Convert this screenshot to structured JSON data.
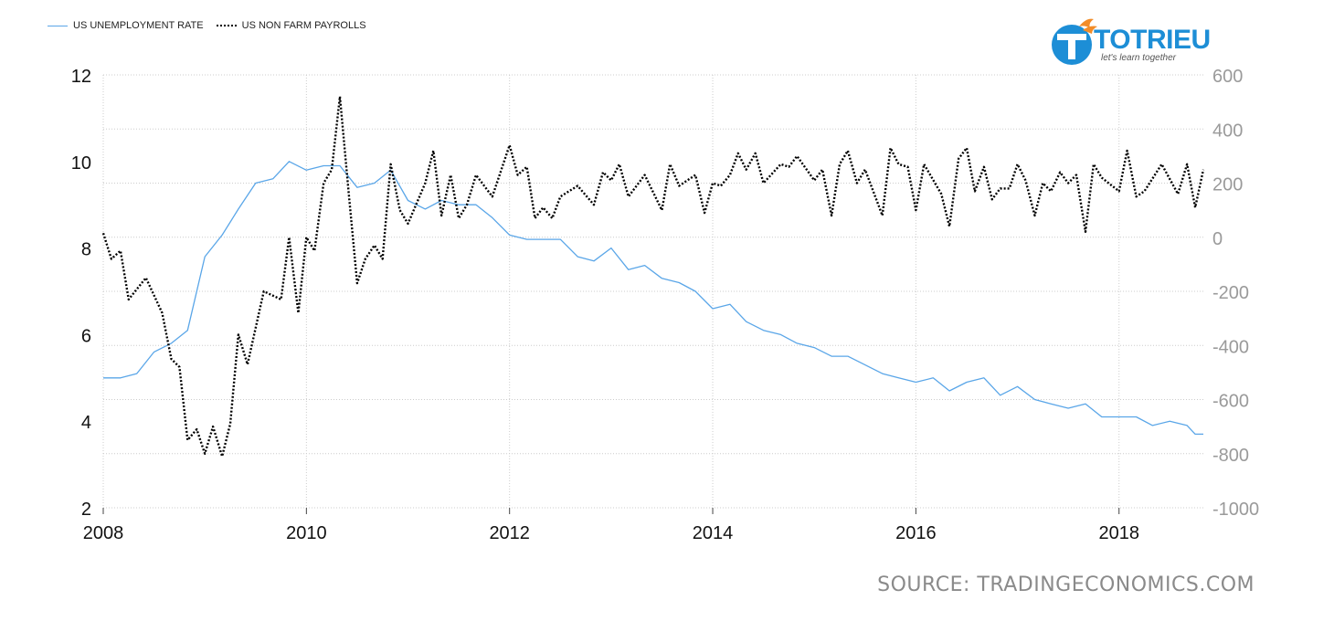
{
  "legend": {
    "series1": "US UNEMPLOYMENT RATE",
    "series2": "US NON FARM PAYROLLS"
  },
  "logo": {
    "word": "TOTRIEU",
    "tagline": "let's learn together"
  },
  "source": "SOURCE: TRADINGECONOMICS.COM",
  "colors": {
    "unemployment": "#5aa6e8",
    "payrolls": "#000000",
    "grid": "#cccccc",
    "right_axis": "#9a9a9a"
  },
  "chart_data": {
    "type": "line",
    "x_ticks": [
      "2008",
      "2010",
      "2012",
      "2014",
      "2016",
      "2018"
    ],
    "y_left": {
      "ticks": [
        2,
        4,
        6,
        8,
        10,
        12
      ],
      "range": [
        2,
        12
      ]
    },
    "y_right": {
      "ticks": [
        600,
        400,
        200,
        0,
        -200,
        -400,
        -600,
        -800,
        -1000
      ],
      "range": [
        -1000,
        600
      ]
    },
    "x_range": [
      2008.0,
      2018.83
    ],
    "series": [
      {
        "name": "US UNEMPLOYMENT RATE",
        "axis": "left",
        "style": "solid",
        "points": [
          [
            2008.0,
            5.0
          ],
          [
            2008.17,
            5.0
          ],
          [
            2008.33,
            5.1
          ],
          [
            2008.5,
            5.6
          ],
          [
            2008.67,
            5.8
          ],
          [
            2008.83,
            6.1
          ],
          [
            2009.0,
            7.8
          ],
          [
            2009.17,
            8.3
          ],
          [
            2009.33,
            8.9
          ],
          [
            2009.5,
            9.5
          ],
          [
            2009.67,
            9.6
          ],
          [
            2009.83,
            10.0
          ],
          [
            2010.0,
            9.8
          ],
          [
            2010.17,
            9.9
          ],
          [
            2010.33,
            9.9
          ],
          [
            2010.5,
            9.4
          ],
          [
            2010.67,
            9.5
          ],
          [
            2010.83,
            9.8
          ],
          [
            2011.0,
            9.1
          ],
          [
            2011.17,
            8.9
          ],
          [
            2011.33,
            9.1
          ],
          [
            2011.5,
            9.0
          ],
          [
            2011.67,
            9.0
          ],
          [
            2011.83,
            8.7
          ],
          [
            2012.0,
            8.3
          ],
          [
            2012.17,
            8.2
          ],
          [
            2012.33,
            8.2
          ],
          [
            2012.5,
            8.2
          ],
          [
            2012.67,
            7.8
          ],
          [
            2012.83,
            7.7
          ],
          [
            2013.0,
            8.0
          ],
          [
            2013.17,
            7.5
          ],
          [
            2013.33,
            7.6
          ],
          [
            2013.5,
            7.3
          ],
          [
            2013.67,
            7.2
          ],
          [
            2013.83,
            7.0
          ],
          [
            2014.0,
            6.6
          ],
          [
            2014.17,
            6.7
          ],
          [
            2014.33,
            6.3
          ],
          [
            2014.5,
            6.1
          ],
          [
            2014.67,
            6.0
          ],
          [
            2014.83,
            5.8
          ],
          [
            2015.0,
            5.7
          ],
          [
            2015.17,
            5.5
          ],
          [
            2015.33,
            5.5
          ],
          [
            2015.5,
            5.3
          ],
          [
            2015.67,
            5.1
          ],
          [
            2015.83,
            5.0
          ],
          [
            2016.0,
            4.9
          ],
          [
            2016.17,
            5.0
          ],
          [
            2016.33,
            4.7
          ],
          [
            2016.5,
            4.9
          ],
          [
            2016.67,
            5.0
          ],
          [
            2016.83,
            4.6
          ],
          [
            2017.0,
            4.8
          ],
          [
            2017.17,
            4.5
          ],
          [
            2017.33,
            4.4
          ],
          [
            2017.5,
            4.3
          ],
          [
            2017.67,
            4.4
          ],
          [
            2017.83,
            4.1
          ],
          [
            2018.0,
            4.1
          ],
          [
            2018.17,
            4.1
          ],
          [
            2018.33,
            3.9
          ],
          [
            2018.5,
            4.0
          ],
          [
            2018.67,
            3.9
          ],
          [
            2018.75,
            3.7
          ],
          [
            2018.83,
            3.7
          ]
        ]
      },
      {
        "name": "US NON FARM PAYROLLS",
        "axis": "right",
        "style": "dotted",
        "points": [
          [
            2008.0,
            15
          ],
          [
            2008.08,
            -80
          ],
          [
            2008.17,
            -50
          ],
          [
            2008.25,
            -230
          ],
          [
            2008.42,
            -150
          ],
          [
            2008.58,
            -280
          ],
          [
            2008.67,
            -450
          ],
          [
            2008.75,
            -480
          ],
          [
            2008.83,
            -750
          ],
          [
            2008.92,
            -710
          ],
          [
            2009.0,
            -800
          ],
          [
            2009.08,
            -700
          ],
          [
            2009.17,
            -810
          ],
          [
            2009.25,
            -690
          ],
          [
            2009.33,
            -360
          ],
          [
            2009.42,
            -470
          ],
          [
            2009.58,
            -200
          ],
          [
            2009.75,
            -230
          ],
          [
            2009.83,
            0
          ],
          [
            2009.92,
            -280
          ],
          [
            2010.0,
            0
          ],
          [
            2010.08,
            -50
          ],
          [
            2010.17,
            200
          ],
          [
            2010.25,
            250
          ],
          [
            2010.33,
            520
          ],
          [
            2010.42,
            150
          ],
          [
            2010.5,
            -170
          ],
          [
            2010.58,
            -80
          ],
          [
            2010.67,
            -30
          ],
          [
            2010.75,
            -80
          ],
          [
            2010.83,
            270
          ],
          [
            2010.92,
            100
          ],
          [
            2011.0,
            50
          ],
          [
            2011.17,
            200
          ],
          [
            2011.25,
            320
          ],
          [
            2011.33,
            80
          ],
          [
            2011.42,
            230
          ],
          [
            2011.5,
            70
          ],
          [
            2011.58,
            120
          ],
          [
            2011.67,
            230
          ],
          [
            2011.83,
            150
          ],
          [
            2012.0,
            340
          ],
          [
            2012.08,
            230
          ],
          [
            2012.17,
            260
          ],
          [
            2012.25,
            70
          ],
          [
            2012.33,
            110
          ],
          [
            2012.42,
            70
          ],
          [
            2012.5,
            150
          ],
          [
            2012.67,
            190
          ],
          [
            2012.83,
            120
          ],
          [
            2012.92,
            240
          ],
          [
            2013.0,
            210
          ],
          [
            2013.08,
            270
          ],
          [
            2013.17,
            150
          ],
          [
            2013.33,
            230
          ],
          [
            2013.5,
            100
          ],
          [
            2013.58,
            270
          ],
          [
            2013.67,
            190
          ],
          [
            2013.83,
            230
          ],
          [
            2013.92,
            90
          ],
          [
            2014.0,
            200
          ],
          [
            2014.08,
            190
          ],
          [
            2014.17,
            230
          ],
          [
            2014.25,
            310
          ],
          [
            2014.33,
            250
          ],
          [
            2014.42,
            310
          ],
          [
            2014.5,
            200
          ],
          [
            2014.67,
            270
          ],
          [
            2014.75,
            260
          ],
          [
            2014.83,
            300
          ],
          [
            2015.0,
            210
          ],
          [
            2015.08,
            250
          ],
          [
            2015.17,
            80
          ],
          [
            2015.25,
            270
          ],
          [
            2015.33,
            320
          ],
          [
            2015.42,
            200
          ],
          [
            2015.5,
            250
          ],
          [
            2015.67,
            80
          ],
          [
            2015.75,
            330
          ],
          [
            2015.83,
            270
          ],
          [
            2015.92,
            260
          ],
          [
            2016.0,
            100
          ],
          [
            2016.08,
            270
          ],
          [
            2016.25,
            160
          ],
          [
            2016.33,
            40
          ],
          [
            2016.42,
            290
          ],
          [
            2016.5,
            330
          ],
          [
            2016.58,
            170
          ],
          [
            2016.67,
            260
          ],
          [
            2016.75,
            140
          ],
          [
            2016.83,
            180
          ],
          [
            2016.92,
            180
          ],
          [
            2017.0,
            270
          ],
          [
            2017.08,
            210
          ],
          [
            2017.17,
            80
          ],
          [
            2017.25,
            200
          ],
          [
            2017.33,
            170
          ],
          [
            2017.42,
            240
          ],
          [
            2017.5,
            200
          ],
          [
            2017.58,
            230
          ],
          [
            2017.67,
            20
          ],
          [
            2017.75,
            270
          ],
          [
            2017.83,
            220
          ],
          [
            2018.0,
            170
          ],
          [
            2018.08,
            320
          ],
          [
            2018.17,
            150
          ],
          [
            2018.25,
            170
          ],
          [
            2018.42,
            270
          ],
          [
            2018.58,
            160
          ],
          [
            2018.67,
            270
          ],
          [
            2018.75,
            110
          ],
          [
            2018.83,
            250
          ]
        ]
      }
    ]
  }
}
